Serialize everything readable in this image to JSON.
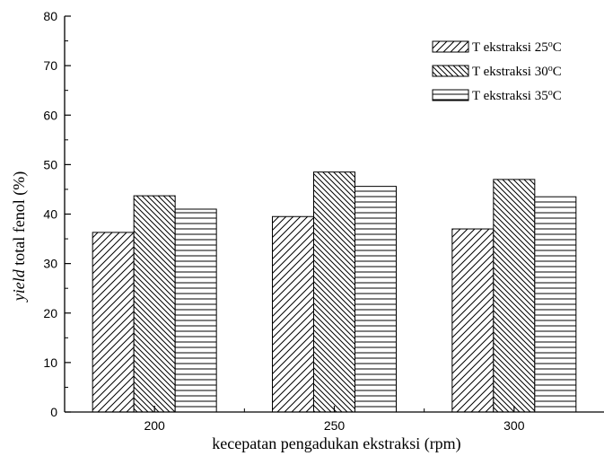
{
  "chart_data": {
    "type": "bar",
    "categories": [
      "200",
      "250",
      "300"
    ],
    "series": [
      {
        "name": "T ekstraksi 25°C",
        "name_base": "T ekstraksi 25",
        "name_sup": "o",
        "name_unit": "C",
        "pattern": "diagonal-up",
        "values": [
          36.3,
          39.5,
          37.0
        ]
      },
      {
        "name": "T ekstraksi 30°C",
        "name_base": "T ekstraksi 30",
        "name_sup": "o",
        "name_unit": "C",
        "pattern": "diagonal-down",
        "values": [
          43.7,
          48.5,
          47.0
        ]
      },
      {
        "name": "T ekstraksi 35°C",
        "name_base": "T ekstraksi 35",
        "name_sup": "o",
        "name_unit": "C",
        "pattern": "horizontal",
        "values": [
          41.0,
          45.6,
          43.5
        ]
      }
    ],
    "xlabel": "kecepatan pengadukan ekstraksi (rpm)",
    "ylabel": "yield total fenol (%)",
    "ylabel_italic": "yield",
    "ylabel_rest": " total fenol (%)",
    "ylim": [
      0,
      80
    ],
    "yticks": [
      0,
      10,
      20,
      30,
      40,
      50,
      60,
      70,
      80
    ],
    "grid": false,
    "legend_position": "top-right",
    "colors": {
      "stroke": "#000000",
      "background": "#ffffff"
    }
  }
}
